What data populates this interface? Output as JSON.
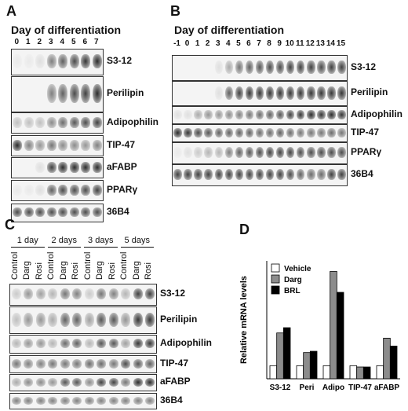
{
  "panelA": {
    "label": "A",
    "title": "Day of differentiation",
    "lanes": [
      "0",
      "1",
      "2",
      "3",
      "4",
      "5",
      "6",
      "7"
    ],
    "genes": [
      {
        "name": "S3-12",
        "levels": [
          0.05,
          0.05,
          0.1,
          0.55,
          0.7,
          0.8,
          0.9,
          0.95
        ]
      },
      {
        "name": "Perilipin",
        "levels": [
          0,
          0,
          0,
          0.55,
          0.7,
          0.8,
          0.85,
          0.95
        ]
      },
      {
        "name": "Adipophilin",
        "levels": [
          0.25,
          0.25,
          0.25,
          0.5,
          0.65,
          0.75,
          0.8,
          0.85
        ]
      },
      {
        "name": "TIP-47",
        "levels": [
          0.95,
          0.55,
          0.45,
          0.6,
          0.5,
          0.5,
          0.45,
          0.55
        ]
      },
      {
        "name": "aFABP",
        "levels": [
          0,
          0,
          0.1,
          0.85,
          0.95,
          0.95,
          0.95,
          0.95
        ]
      },
      {
        "name": "PPARγ",
        "levels": [
          0.05,
          0.05,
          0.1,
          0.7,
          0.8,
          0.8,
          0.8,
          0.85
        ]
      },
      {
        "name": "36B4",
        "levels": [
          0.8,
          0.8,
          0.8,
          0.8,
          0.8,
          0.8,
          0.8,
          0.8
        ]
      }
    ]
  },
  "panelB": {
    "label": "B",
    "title": "Day of differentiation",
    "lanes": [
      "-1",
      "0",
      "1",
      "2",
      "3",
      "4",
      "5",
      "6",
      "7",
      "8",
      "9",
      "10",
      "11",
      "12",
      "13",
      "14",
      "15"
    ],
    "genes": [
      {
        "name": "S3-12",
        "levels": [
          0,
          0,
          0,
          0,
          0.1,
          0.35,
          0.6,
          0.7,
          0.75,
          0.8,
          0.8,
          0.85,
          0.85,
          0.85,
          0.8,
          0.85,
          0.85
        ]
      },
      {
        "name": "Perilipin",
        "levels": [
          0,
          0,
          0,
          0,
          0.1,
          0.7,
          0.85,
          0.9,
          0.9,
          0.9,
          0.9,
          0.9,
          0.9,
          0.9,
          0.9,
          0.9,
          0.9
        ]
      },
      {
        "name": "Adipophilin",
        "levels": [
          0.1,
          0.1,
          0.35,
          0.45,
          0.45,
          0.5,
          0.55,
          0.6,
          0.65,
          0.7,
          0.75,
          0.85,
          0.9,
          0.95,
          0.9,
          0.95,
          0.9
        ]
      },
      {
        "name": "TIP-47",
        "levels": [
          0.95,
          0.9,
          0.8,
          0.75,
          0.7,
          0.7,
          0.7,
          0.7,
          0.65,
          0.65,
          0.7,
          0.65,
          0.6,
          0.6,
          0.6,
          0.65,
          0.6
        ]
      },
      {
        "name": "PPARγ",
        "levels": [
          0.05,
          0.1,
          0.2,
          0.3,
          0.3,
          0.55,
          0.7,
          0.75,
          0.8,
          0.85,
          0.85,
          0.85,
          0.8,
          0.8,
          0.8,
          0.8,
          0.8
        ]
      },
      {
        "name": "36B4",
        "levels": [
          0.85,
          0.85,
          0.85,
          0.85,
          0.85,
          0.85,
          0.85,
          0.85,
          0.85,
          0.85,
          0.85,
          0.8,
          0.7,
          0.65,
          0.65,
          0.85,
          0.85
        ]
      }
    ]
  },
  "panelC": {
    "label": "C",
    "groups": [
      "1 day",
      "2 days",
      "3 days",
      "5 days"
    ],
    "lanes": [
      "Control",
      "Darg",
      "Rosi",
      "Control",
      "Darg",
      "Rosi",
      "Control",
      "Darg",
      "Rosi",
      "Control",
      "Darg",
      "Rosi"
    ],
    "genes": [
      {
        "name": "S3-12",
        "levels": [
          0.2,
          0.45,
          0.4,
          0.3,
          0.6,
          0.55,
          0.2,
          0.6,
          0.55,
          0.3,
          0.85,
          0.85
        ]
      },
      {
        "name": "Perilipin",
        "levels": [
          0.25,
          0.45,
          0.45,
          0.35,
          0.7,
          0.7,
          0.4,
          0.75,
          0.75,
          0.45,
          0.9,
          0.9
        ]
      },
      {
        "name": "Adipophilin",
        "levels": [
          0.3,
          0.45,
          0.45,
          0.3,
          0.65,
          0.7,
          0.3,
          0.75,
          0.75,
          0.4,
          0.9,
          0.9
        ]
      },
      {
        "name": "TIP-47",
        "levels": [
          0.6,
          0.55,
          0.55,
          0.6,
          0.6,
          0.6,
          0.65,
          0.65,
          0.6,
          0.8,
          0.75,
          0.7
        ]
      },
      {
        "name": "aFABP",
        "levels": [
          0.35,
          0.5,
          0.5,
          0.45,
          0.75,
          0.75,
          0.5,
          0.85,
          0.85,
          0.6,
          0.95,
          0.95
        ]
      },
      {
        "name": "36B4",
        "levels": [
          0.55,
          0.55,
          0.55,
          0.55,
          0.55,
          0.55,
          0.55,
          0.55,
          0.55,
          0.55,
          0.55,
          0.55
        ]
      }
    ]
  },
  "panelD": {
    "label": "D",
    "chart_data": {
      "type": "bar",
      "categories": [
        "S3-12",
        "Peri",
        "Adipo",
        "TIP-47",
        "aFABP"
      ],
      "series": [
        {
          "name": "Vehicle",
          "values": [
            1,
            1,
            1,
            1,
            1
          ],
          "color": "#ffffff"
        },
        {
          "name": "Darg",
          "values": [
            3.5,
            2,
            8.2,
            0.9,
            3.1
          ],
          "color": "#8c8c8c"
        },
        {
          "name": "BRL",
          "values": [
            3.9,
            2.1,
            6.6,
            0.9,
            2.5
          ],
          "color": "#000000"
        }
      ],
      "ylabel": "Relative mRNA levels",
      "ylim": [
        0,
        9
      ],
      "legend": "top-left"
    }
  }
}
